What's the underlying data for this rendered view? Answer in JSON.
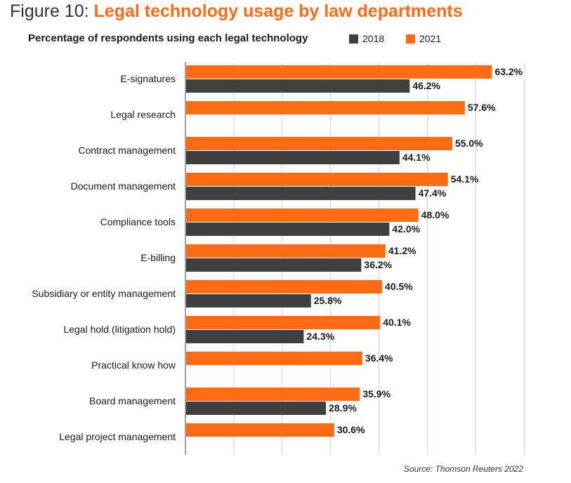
{
  "title": {
    "prefix": "Figure 10:",
    "main": "Legal technology usage by law departments"
  },
  "subtitle": "Percentage of respondents using each legal technology",
  "source": "Source: Thomson Reuters 2022",
  "colors": {
    "2018": "#404040",
    "2021": "#ff6a13",
    "grid": "#d0d0d0",
    "axis": "#808080"
  },
  "legend": [
    {
      "name": "2018",
      "color": "#404040"
    },
    {
      "name": "2021",
      "color": "#ff6a13"
    }
  ],
  "chart_data": {
    "type": "bar",
    "orientation": "horizontal",
    "title": "Legal technology usage by law departments",
    "subtitle": "Percentage of respondents using each legal technology",
    "categories": [
      "E-signatures",
      "Legal research",
      "Contract management",
      "Document management",
      "Compliance tools",
      "E-billing",
      "Subsidiary or entity management",
      "Legal hold (litigation hold)",
      "Practical know how",
      "Board management",
      "Legal project management"
    ],
    "series": [
      {
        "name": "2021",
        "color": "#ff6a13",
        "values": [
          63.2,
          57.6,
          55.0,
          54.1,
          48.0,
          41.2,
          40.5,
          40.1,
          36.4,
          35.9,
          30.6
        ],
        "labels": [
          "63.2%",
          "57.6%",
          "55.0%",
          "54.1%",
          "48.0%",
          "41.2%",
          "40.5%",
          "40.1%",
          "36.4%",
          "35.9%",
          "30.6%"
        ]
      },
      {
        "name": "2018",
        "color": "#404040",
        "values": [
          46.2,
          null,
          44.1,
          47.4,
          42.0,
          36.2,
          25.8,
          24.3,
          null,
          28.9,
          null
        ],
        "labels": [
          "46.2%",
          null,
          "44.1%",
          "47.4%",
          "42.0%",
          "36.2%",
          "25.8%",
          "24.3%",
          null,
          "28.9%",
          null
        ]
      }
    ],
    "xlim": [
      0,
      70
    ],
    "grid": true,
    "legend_position": "top"
  }
}
